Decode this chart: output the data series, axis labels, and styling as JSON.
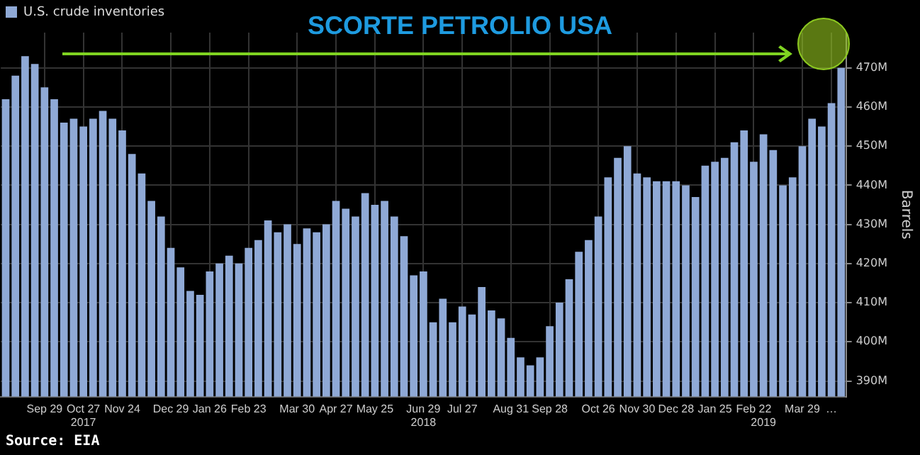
{
  "chart_data": {
    "type": "bar",
    "title": "SCORTE PETROLIO USA",
    "ylabel": "Barrels",
    "annotations": [
      "Source: EIA"
    ],
    "legend": "top left",
    "grid": true,
    "categories": [
      null,
      null,
      null,
      null,
      "Sep 29",
      null,
      null,
      null,
      "Oct 27\n2017",
      null,
      null,
      null,
      "Nov 24",
      null,
      null,
      null,
      null,
      "Dec 29",
      null,
      null,
      null,
      "Jan 26",
      null,
      null,
      null,
      "Feb 23",
      null,
      null,
      null,
      null,
      "Mar 30",
      null,
      null,
      null,
      "Apr 27",
      null,
      null,
      null,
      "May 25",
      null,
      null,
      null,
      null,
      "Jun 29\n2018",
      null,
      null,
      null,
      "Jul 27",
      null,
      null,
      null,
      null,
      "Aug 31",
      null,
      null,
      null,
      "Sep 28",
      null,
      null,
      null,
      null,
      "Oct 26",
      null,
      null,
      null,
      "Nov 30",
      null,
      null,
      null,
      "Dec 28",
      null,
      null,
      null,
      "Jan 25",
      null,
      null,
      null,
      "Feb 22",
      "\n2019",
      null,
      null,
      null,
      "Mar 29",
      null,
      null,
      "…",
      null
    ],
    "series": [
      {
        "name": "U.S. crude inventories",
        "color": "#8fa9d6",
        "values": [
          462,
          468,
          473,
          471,
          465,
          462,
          456,
          457,
          455,
          457,
          459,
          457,
          454,
          448,
          443,
          436,
          432,
          424,
          419,
          413,
          412,
          418,
          420,
          422,
          420,
          424,
          426,
          431,
          428,
          430,
          425,
          429,
          428,
          430,
          436,
          434,
          432,
          438,
          435,
          436,
          432,
          427,
          417,
          418,
          405,
          411,
          405,
          409,
          407,
          414,
          408,
          406,
          401,
          396,
          394,
          396,
          404,
          410,
          416,
          423,
          426,
          432,
          442,
          447,
          450,
          443,
          442,
          441,
          441,
          441,
          440,
          437,
          445,
          446,
          447,
          451,
          454,
          446,
          453,
          449,
          440,
          442,
          450,
          457,
          455,
          461,
          470
        ]
      }
    ],
    "ylim": [
      386,
      479
    ],
    "yticks": [
      {
        "value": 390,
        "label": "390M"
      },
      {
        "value": 400,
        "label": "400M"
      },
      {
        "value": 410,
        "label": "410M"
      },
      {
        "value": 420,
        "label": "420M"
      },
      {
        "value": 430,
        "label": "430M"
      },
      {
        "value": 440,
        "label": "440M"
      },
      {
        "value": 450,
        "label": "450M"
      },
      {
        "value": 460,
        "label": "460M"
      },
      {
        "value": 470,
        "label": "470M"
      }
    ]
  }
}
